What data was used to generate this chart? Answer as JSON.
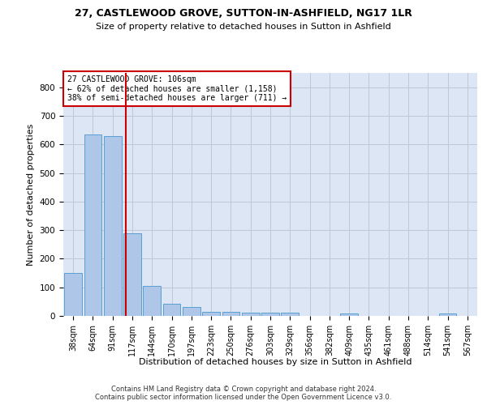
{
  "title": "27, CASTLEWOOD GROVE, SUTTON-IN-ASHFIELD, NG17 1LR",
  "subtitle": "Size of property relative to detached houses in Sutton in Ashfield",
  "xlabel": "Distribution of detached houses by size in Sutton in Ashfield",
  "ylabel": "Number of detached properties",
  "categories": [
    "38sqm",
    "64sqm",
    "91sqm",
    "117sqm",
    "144sqm",
    "170sqm",
    "197sqm",
    "223sqm",
    "250sqm",
    "276sqm",
    "303sqm",
    "329sqm",
    "356sqm",
    "382sqm",
    "409sqm",
    "435sqm",
    "461sqm",
    "488sqm",
    "514sqm",
    "541sqm",
    "567sqm"
  ],
  "values": [
    150,
    635,
    628,
    290,
    105,
    43,
    30,
    13,
    13,
    10,
    10,
    10,
    0,
    0,
    8,
    0,
    0,
    0,
    0,
    8,
    0
  ],
  "bar_color": "#aec6e8",
  "bar_edge_color": "#5a9fd4",
  "grid_color": "#c0c8d8",
  "bg_color": "#dce6f5",
  "property_line_x": 2.67,
  "annotation_text": "27 CASTLEWOOD GROVE: 106sqm\n← 62% of detached houses are smaller (1,158)\n38% of semi-detached houses are larger (711) →",
  "annotation_box_color": "#cc0000",
  "footer_line1": "Contains HM Land Registry data © Crown copyright and database right 2024.",
  "footer_line2": "Contains public sector information licensed under the Open Government Licence v3.0.",
  "ylim": [
    0,
    850
  ],
  "yticks": [
    0,
    100,
    200,
    300,
    400,
    500,
    600,
    700,
    800
  ]
}
